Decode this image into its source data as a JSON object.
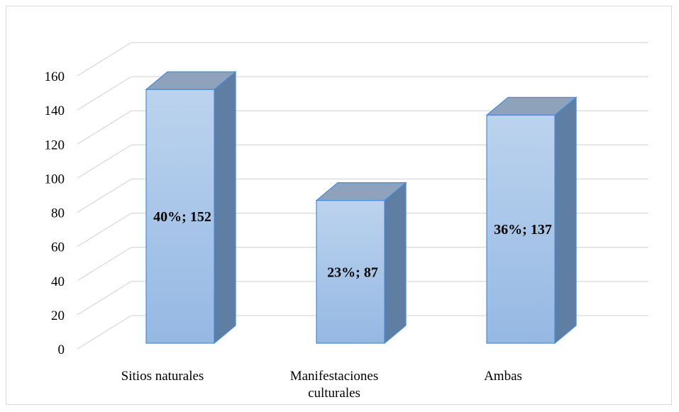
{
  "chart_data": {
    "type": "bar",
    "style": "3d-column",
    "categories": [
      "Sitios naturales",
      "Manifestaciones culturales",
      "Ambas"
    ],
    "category_lines": [
      [
        "Sitios naturales"
      ],
      [
        "Manifestaciones",
        "culturales"
      ],
      [
        "Ambas"
      ]
    ],
    "values": [
      152,
      87,
      137
    ],
    "percents": [
      "40%",
      "23%",
      "36%"
    ],
    "data_labels": [
      "40%; 152",
      "23%; 87",
      "36%; 137"
    ],
    "ylim": [
      0,
      160
    ],
    "yticks": [
      0,
      20,
      40,
      60,
      80,
      100,
      120,
      140,
      160
    ],
    "title": "",
    "xlabel": "",
    "ylabel": "",
    "grid": true,
    "legend": "none",
    "colors": {
      "bar_front_top": "#bcd3ee",
      "bar_front_bottom": "#95b8e3",
      "bar_side": "#5f7ea3",
      "bar_top": "#8ea2bb",
      "bar_edge": "#4a8ad4",
      "grid": "#d9d9d9"
    }
  }
}
